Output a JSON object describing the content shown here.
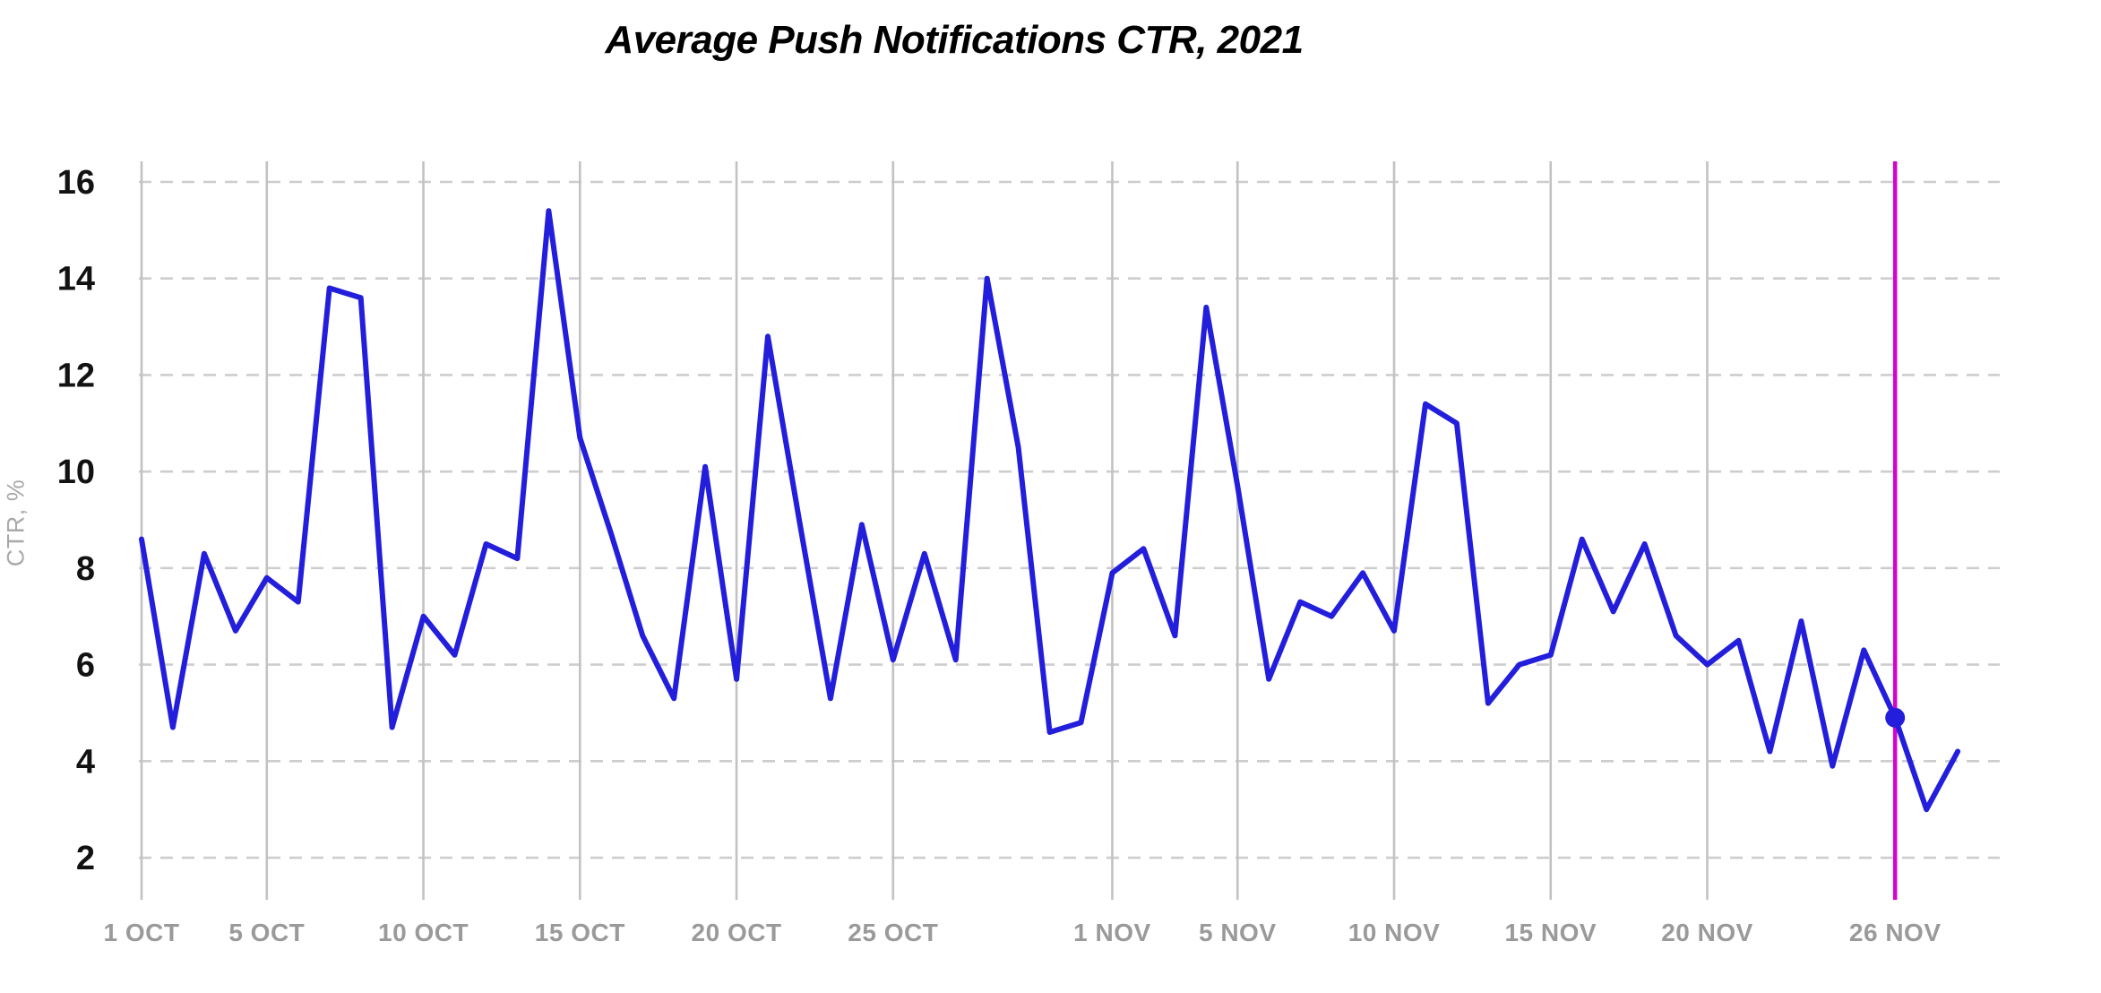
{
  "title": "Average Push Notifications CTR, 2021",
  "y_axis": {
    "label": "CTR, %",
    "ticks": [
      16,
      14,
      12,
      10,
      8,
      6,
      4,
      2
    ]
  },
  "x_axis": {
    "ticks": [
      {
        "day": 0,
        "label": "1 OCT",
        "highlight": false
      },
      {
        "day": 4,
        "label": "5 OCT",
        "highlight": false
      },
      {
        "day": 9,
        "label": "10 OCT",
        "highlight": false
      },
      {
        "day": 14,
        "label": "15 OCT",
        "highlight": false
      },
      {
        "day": 19,
        "label": "20 OCT",
        "highlight": false
      },
      {
        "day": 24,
        "label": "25 OCT",
        "highlight": false
      },
      {
        "day": 31,
        "label": "1 NOV",
        "highlight": false
      },
      {
        "day": 35,
        "label": "5 NOV",
        "highlight": false
      },
      {
        "day": 40,
        "label": "10 NOV",
        "highlight": false
      },
      {
        "day": 45,
        "label": "15 NOV",
        "highlight": false
      },
      {
        "day": 50,
        "label": "20 NOV",
        "highlight": false
      },
      {
        "day": 56,
        "label": "26 NOV",
        "highlight": true
      }
    ]
  },
  "highlight": {
    "day": 56,
    "label": "26 NOV",
    "value": 4.9
  },
  "colors": {
    "line": "#231edc",
    "highlight": "#d602ce",
    "grid_dashed": "#cdcdcd",
    "grid_solid": "#c2c2c2",
    "x_label": "#9a9a9a",
    "y_label": "#121212",
    "axis_label": "#a9a9a9",
    "title": "#000000"
  },
  "chart_data": {
    "type": "line",
    "title": "Average Push Notifications CTR, 2021",
    "xlabel": "",
    "ylabel": "CTR, %",
    "ylim": [
      1.5,
      16.5
    ],
    "grid": "both",
    "legend_position": "none",
    "x_start": "1 OCT 2021",
    "x_end": "28 NOV 2021",
    "highlight_index": 56,
    "dates": [
      "1 OCT",
      "2 OCT",
      "3 OCT",
      "4 OCT",
      "5 OCT",
      "6 OCT",
      "7 OCT",
      "8 OCT",
      "9 OCT",
      "10 OCT",
      "11 OCT",
      "12 OCT",
      "13 OCT",
      "14 OCT",
      "15 OCT",
      "16 OCT",
      "17 OCT",
      "18 OCT",
      "19 OCT",
      "20 OCT",
      "21 OCT",
      "22 OCT",
      "23 OCT",
      "24 OCT",
      "25 OCT",
      "26 OCT",
      "27 OCT",
      "28 OCT",
      "29 OCT",
      "30 OCT",
      "31 OCT",
      "1 NOV",
      "2 NOV",
      "3 NOV",
      "4 NOV",
      "5 NOV",
      "6 NOV",
      "7 NOV",
      "8 NOV",
      "9 NOV",
      "10 NOV",
      "11 NOV",
      "12 NOV",
      "13 NOV",
      "14 NOV",
      "15 NOV",
      "16 NOV",
      "17 NOV",
      "18 NOV",
      "19 NOV",
      "20 NOV",
      "21 NOV",
      "22 NOV",
      "23 NOV",
      "24 NOV",
      "25 NOV",
      "26 NOV",
      "27 NOV",
      "28 NOV"
    ],
    "series": [
      {
        "name": "Average Push Notifications CTR, %",
        "values": [
          8.6,
          4.7,
          8.3,
          6.7,
          7.8,
          7.3,
          13.8,
          13.6,
          4.7,
          7.0,
          6.2,
          8.5,
          8.2,
          15.4,
          10.7,
          8.7,
          6.6,
          5.3,
          10.1,
          5.7,
          12.8,
          9.0,
          5.3,
          8.9,
          6.1,
          8.3,
          6.1,
          14.0,
          10.5,
          4.6,
          4.8,
          7.9,
          8.4,
          6.6,
          13.4,
          9.7,
          5.7,
          7.3,
          7.0,
          7.9,
          6.7,
          11.4,
          11.0,
          5.2,
          6.0,
          6.2,
          8.6,
          7.1,
          8.5,
          6.6,
          6.0,
          6.5,
          4.2,
          6.9,
          3.9,
          6.3,
          4.9,
          3.0,
          4.2
        ]
      }
    ]
  }
}
